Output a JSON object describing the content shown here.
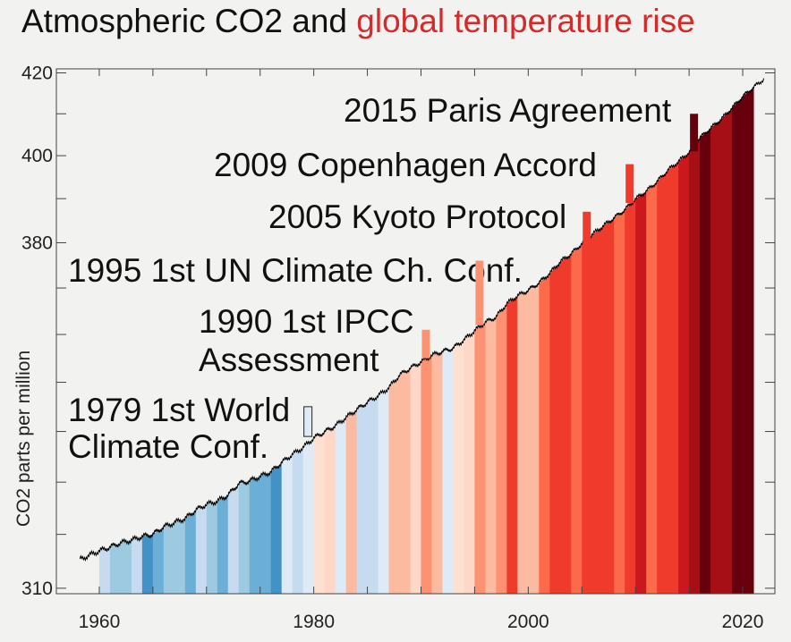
{
  "title": {
    "part1": "Atmospheric CO2 and ",
    "part2": "global temperature rise",
    "color1": "#111111",
    "color2": "#d42a2a"
  },
  "chart_data": {
    "type": "line",
    "title": "Atmospheric CO2 and global temperature rise",
    "xlabel": "",
    "ylabel": "CO2 parts per million",
    "xlim": [
      1956,
      2023
    ],
    "ylim": [
      309,
      421
    ],
    "x_ticks": [
      1960,
      1980,
      2000,
      2020
    ],
    "y_ticks": [
      310,
      380,
      400,
      420
    ],
    "y_tick_labels": [
      "310",
      "380",
      "400",
      "420"
    ],
    "grid": false,
    "series": [
      {
        "points": [
          [
            1958.2,
            315.3
          ],
          [
            1959,
            316.0
          ],
          [
            1960,
            316.9
          ],
          [
            1961,
            317.6
          ],
          [
            1962,
            318.4
          ],
          [
            1963,
            318.9
          ],
          [
            1964,
            319.6
          ],
          [
            1965,
            320.0
          ],
          [
            1966,
            321.4
          ],
          [
            1967,
            322.2
          ],
          [
            1968,
            323.0
          ],
          [
            1969,
            324.6
          ],
          [
            1970,
            325.7
          ],
          [
            1971,
            326.3
          ],
          [
            1972,
            327.5
          ],
          [
            1973,
            329.7
          ],
          [
            1974,
            330.2
          ],
          [
            1975,
            331.1
          ],
          [
            1976,
            332.0
          ],
          [
            1977,
            333.8
          ],
          [
            1978,
            335.4
          ],
          [
            1979,
            336.8
          ],
          [
            1980,
            338.7
          ],
          [
            1981,
            339.9
          ],
          [
            1982,
            341.1
          ],
          [
            1983,
            342.8
          ],
          [
            1984,
            344.4
          ],
          [
            1985,
            345.9
          ],
          [
            1986,
            347.2
          ],
          [
            1987,
            348.9
          ],
          [
            1988,
            351.5
          ],
          [
            1989,
            352.9
          ],
          [
            1990,
            354.2
          ],
          [
            1991,
            355.6
          ],
          [
            1992,
            356.4
          ],
          [
            1993,
            357.1
          ],
          [
            1994,
            358.8
          ],
          [
            1995,
            360.8
          ],
          [
            1996,
            362.6
          ],
          [
            1997,
            363.7
          ],
          [
            1998,
            366.6
          ],
          [
            1999,
            368.3
          ],
          [
            2000,
            369.5
          ],
          [
            2001,
            371.1
          ],
          [
            2002,
            373.2
          ],
          [
            2003,
            375.8
          ],
          [
            2004,
            377.5
          ],
          [
            2005,
            379.8
          ],
          [
            2006,
            381.9
          ],
          [
            2007,
            383.8
          ],
          [
            2008,
            385.6
          ],
          [
            2009,
            387.4
          ],
          [
            2010,
            389.9
          ],
          [
            2011,
            391.7
          ],
          [
            2012,
            393.9
          ],
          [
            2013,
            396.5
          ],
          [
            2014,
            398.6
          ],
          [
            2015,
            400.8
          ],
          [
            2016,
            404.2
          ],
          [
            2017,
            406.5
          ],
          [
            2018,
            408.7
          ],
          [
            2019,
            411.4
          ],
          [
            2020,
            414.2
          ],
          [
            2021,
            416.4
          ],
          [
            2022,
            418.5
          ]
        ],
        "color": "#000000"
      }
    ],
    "stripes": [
      {
        "year": 1960,
        "color": "#c6dbef"
      },
      {
        "year": 1961,
        "color": "#9ecae1"
      },
      {
        "year": 1962,
        "color": "#9ecae1"
      },
      {
        "year": 1963,
        "color": "#c6dbef"
      },
      {
        "year": 1964,
        "color": "#4292c6"
      },
      {
        "year": 1965,
        "color": "#6baed6"
      },
      {
        "year": 1966,
        "color": "#9ecae1"
      },
      {
        "year": 1967,
        "color": "#9ecae1"
      },
      {
        "year": 1968,
        "color": "#6baed6"
      },
      {
        "year": 1969,
        "color": "#c6dbef"
      },
      {
        "year": 1970,
        "color": "#9ecae1"
      },
      {
        "year": 1971,
        "color": "#6baed6"
      },
      {
        "year": 1972,
        "color": "#c6dbef"
      },
      {
        "year": 1973,
        "color": "#9ecae1"
      },
      {
        "year": 1974,
        "color": "#6baed6"
      },
      {
        "year": 1975,
        "color": "#6baed6"
      },
      {
        "year": 1976,
        "color": "#4292c6"
      },
      {
        "year": 1977,
        "color": "#deebf7"
      },
      {
        "year": 1978,
        "color": "#c6dbef"
      },
      {
        "year": 1979,
        "color": "#deebf7"
      },
      {
        "year": 1980,
        "color": "#fee0d2"
      },
      {
        "year": 1981,
        "color": "#fdd7c7"
      },
      {
        "year": 1982,
        "color": "#deebf7"
      },
      {
        "year": 1983,
        "color": "#fcbba1"
      },
      {
        "year": 1984,
        "color": "#c6dbef"
      },
      {
        "year": 1985,
        "color": "#c6dbef"
      },
      {
        "year": 1986,
        "color": "#deebf7"
      },
      {
        "year": 1987,
        "color": "#fcbba1"
      },
      {
        "year": 1988,
        "color": "#fcbba1"
      },
      {
        "year": 1989,
        "color": "#fdd7c7"
      },
      {
        "year": 1990,
        "color": "#fc9272"
      },
      {
        "year": 1991,
        "color": "#fcbba1"
      },
      {
        "year": 1992,
        "color": "#deebf7"
      },
      {
        "year": 1993,
        "color": "#fee0d2"
      },
      {
        "year": 1994,
        "color": "#fdd7c7"
      },
      {
        "year": 1995,
        "color": "#fc9272"
      },
      {
        "year": 1996,
        "color": "#fcbba1"
      },
      {
        "year": 1997,
        "color": "#fc9272"
      },
      {
        "year": 1998,
        "color": "#ef3b2c"
      },
      {
        "year": 1999,
        "color": "#fcbba1"
      },
      {
        "year": 2000,
        "color": "#fcbba1"
      },
      {
        "year": 2001,
        "color": "#fb6a4a"
      },
      {
        "year": 2002,
        "color": "#ef3b2c"
      },
      {
        "year": 2003,
        "color": "#ef3b2c"
      },
      {
        "year": 2004,
        "color": "#fb6a4a"
      },
      {
        "year": 2005,
        "color": "#ef3b2c"
      },
      {
        "year": 2006,
        "color": "#ef3b2c"
      },
      {
        "year": 2007,
        "color": "#ef3b2c"
      },
      {
        "year": 2008,
        "color": "#fb6a4a"
      },
      {
        "year": 2009,
        "color": "#ef3b2c"
      },
      {
        "year": 2010,
        "color": "#cb181d"
      },
      {
        "year": 2011,
        "color": "#fb6a4a"
      },
      {
        "year": 2012,
        "color": "#ef3b2c"
      },
      {
        "year": 2013,
        "color": "#ef3b2c"
      },
      {
        "year": 2014,
        "color": "#cb181d"
      },
      {
        "year": 2015,
        "color": "#a50f15"
      },
      {
        "year": 2016,
        "color": "#67000d"
      },
      {
        "year": 2017,
        "color": "#a50f15"
      },
      {
        "year": 2018,
        "color": "#a50f15"
      },
      {
        "year": 2019,
        "color": "#67000d"
      },
      {
        "year": 2020,
        "color": "#67000d"
      }
    ],
    "annotations": [
      {
        "lines": [
          "2015 Paris Agreement"
        ],
        "year": 2015,
        "marker_color": "#67000d",
        "marker_y": [
          401,
          410
        ]
      },
      {
        "lines": [
          "2009 Copenhagen Accord"
        ],
        "year": 2009,
        "marker_color": "#ef3b2c",
        "marker_y": [
          389,
          398
        ]
      },
      {
        "lines": [
          "2005 Kyoto Protocol"
        ],
        "year": 2005,
        "marker_color": "#ef3b2c",
        "marker_y": [
          380,
          387
        ]
      },
      {
        "lines": [
          "1995 1st UN Climate Ch. Conf."
        ],
        "year": 1995,
        "marker_color": "#fc9272",
        "marker_y": [
          362,
          376
        ]
      },
      {
        "lines": [
          "1990 1st IPCC",
          "Assessment"
        ],
        "year": 1990,
        "marker_color": "#fc9272",
        "marker_y": [
          355,
          361
        ]
      },
      {
        "lines": [
          "1979 1st World",
          "Climate Conf."
        ],
        "year": 1979,
        "marker_color": "#deebf7",
        "marker_y": [
          339,
          345
        ]
      }
    ]
  }
}
